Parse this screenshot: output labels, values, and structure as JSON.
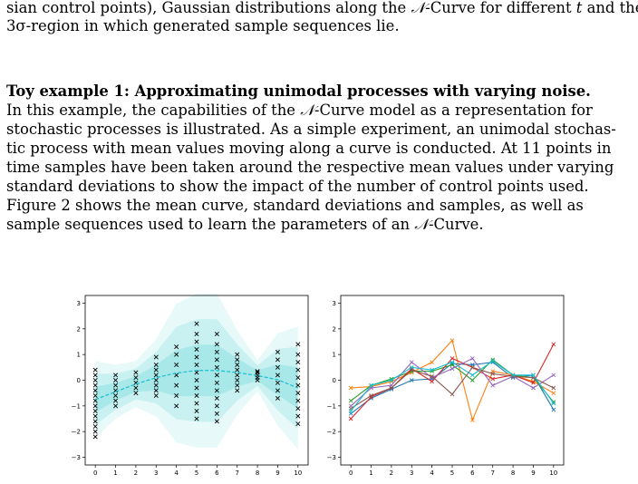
{
  "text": {
    "top_line1_a": "sian control points), Gaussian distributions along the ",
    "top_line1_b": "-Curve for different ",
    "top_line1_c": " and the",
    "top_line2": "3σ-region in which generated sample sequences lie.",
    "para_heading": "Toy example 1: Approximating unimodal processes with varying noise.",
    "para_line2_a": "In this example, the capabilities of the ",
    "para_line2_b": "-Curve model as a representation for",
    "para_line3": "stochastic processes is illustrated. As a simple experiment, an unimodal stochas-",
    "para_line4": "tic process with mean values moving along a curve is conducted. At 11 points in",
    "para_line5": "time samples have been taken around the respective mean values under varying",
    "para_line6": "standard deviations to show the impact of the number of control points used.",
    "para_line7": "Figure 2 shows the mean curve, standard deviations and samples, as well as",
    "para_line8_a": "sample sequences used to learn the parameters of an ",
    "para_line8_b": "-Curve.",
    "sym_N": "𝒩",
    "sym_t": "t"
  },
  "chart_data": [
    {
      "type": "scatter",
      "x_ticks": [
        "0",
        "1",
        "2",
        "3",
        "4",
        "5",
        "6",
        "7",
        "8",
        "9",
        "10"
      ],
      "y_ticks": [
        "-3",
        "-2",
        "-1",
        "0",
        "1",
        "2",
        "3"
      ],
      "xlim": [
        -0.5,
        10.5
      ],
      "ylim": [
        -3.3,
        3.3
      ],
      "mean_curve": {
        "x": [
          0,
          1,
          2,
          3,
          4,
          5,
          6,
          7,
          8,
          9,
          10
        ],
        "y": [
          -0.75,
          -0.45,
          -0.15,
          0.1,
          0.28,
          0.38,
          0.38,
          0.3,
          0.18,
          0.02,
          -0.3
        ]
      },
      "std": [
        0.5,
        0.35,
        0.3,
        0.5,
        0.9,
        1.0,
        1.0,
        0.55,
        0.2,
        0.6,
        0.8
      ],
      "samples": [
        {
          "x": 0,
          "y": [
            -2.2,
            -2.0,
            -1.8,
            -1.6,
            -1.4,
            -1.2,
            -1.0,
            -0.8,
            -0.6,
            -0.4,
            -0.2,
            0.0,
            0.2,
            0.4
          ]
        },
        {
          "x": 1,
          "y": [
            -1.0,
            -0.8,
            -0.6,
            -0.4,
            -0.2,
            0.0,
            0.2
          ]
        },
        {
          "x": 2,
          "y": [
            -0.5,
            -0.3,
            -0.1,
            0.1,
            0.3
          ]
        },
        {
          "x": 3,
          "y": [
            -0.6,
            -0.4,
            -0.2,
            0.0,
            0.2,
            0.4,
            0.6,
            0.9
          ]
        },
        {
          "x": 4,
          "y": [
            -1.0,
            -0.6,
            -0.2,
            0.2,
            0.6,
            1.0,
            1.3
          ]
        },
        {
          "x": 5,
          "y": [
            -1.5,
            -1.2,
            -0.9,
            -0.6,
            -0.3,
            0.0,
            0.3,
            0.6,
            0.9,
            1.2,
            1.5,
            1.8,
            2.2
          ]
        },
        {
          "x": 6,
          "y": [
            -1.6,
            -1.3,
            -1.0,
            -0.7,
            -0.4,
            -0.1,
            0.2,
            0.5,
            0.8,
            1.1,
            1.4,
            1.8
          ]
        },
        {
          "x": 7,
          "y": [
            -0.4,
            -0.2,
            0.0,
            0.2,
            0.4,
            0.6,
            0.8,
            1.0
          ]
        },
        {
          "x": 8,
          "y": [
            0.0,
            0.1,
            0.2,
            0.3,
            0.35
          ]
        },
        {
          "x": 9,
          "y": [
            -0.7,
            -0.4,
            -0.1,
            0.2,
            0.5,
            0.8,
            1.1
          ]
        },
        {
          "x": 10,
          "y": [
            -1.7,
            -1.4,
            -1.1,
            -0.8,
            -0.5,
            -0.2,
            0.1,
            0.4,
            0.7,
            1.0,
            1.4
          ]
        }
      ],
      "colors": {
        "mean": "#17becf",
        "band": "#7fdede",
        "samples": "#000000"
      }
    },
    {
      "type": "line",
      "x_ticks": [
        "0",
        "1",
        "2",
        "3",
        "4",
        "5",
        "6",
        "7",
        "8",
        "9",
        "10"
      ],
      "y_ticks": [
        "-3",
        "-2",
        "-1",
        "0",
        "1",
        "2",
        "3"
      ],
      "xlim": [
        -0.5,
        10.5
      ],
      "ylim": [
        -3.3,
        3.3
      ],
      "x": [
        0,
        1,
        2,
        3,
        4,
        5,
        6,
        7,
        8,
        9,
        10
      ],
      "series": [
        {
          "color": "#1f77b4",
          "values": [
            -1.3,
            -0.7,
            -0.35,
            0.0,
            0.05,
            0.65,
            0.6,
            0.7,
            0.1,
            0.2,
            -1.15
          ]
        },
        {
          "color": "#ff7f0e",
          "values": [
            -0.3,
            -0.25,
            -0.05,
            0.3,
            0.7,
            1.55,
            -1.55,
            0.35,
            0.2,
            -0.05,
            -0.5
          ]
        },
        {
          "color": "#2ca02c",
          "values": [
            -0.8,
            -0.2,
            0.05,
            0.35,
            0.35,
            0.6,
            0.0,
            0.8,
            0.2,
            0.1,
            -0.85
          ]
        },
        {
          "color": "#d62728",
          "values": [
            -1.5,
            -0.65,
            -0.3,
            0.45,
            -0.05,
            0.85,
            0.5,
            0.05,
            0.2,
            -0.1,
            1.4
          ]
        },
        {
          "color": "#9467bd",
          "values": [
            -1.0,
            -0.3,
            -0.2,
            0.7,
            0.1,
            0.45,
            0.85,
            -0.2,
            0.15,
            -0.3,
            0.2
          ]
        },
        {
          "color": "#8c564b",
          "values": [
            -1.1,
            -0.6,
            -0.3,
            0.4,
            0.15,
            -0.55,
            0.5,
            0.25,
            0.15,
            0.1,
            -0.3
          ]
        },
        {
          "color": "#17becf",
          "values": [
            -1.2,
            -0.2,
            0.0,
            0.5,
            0.4,
            0.7,
            0.2,
            0.75,
            0.2,
            0.2,
            -0.9
          ]
        }
      ]
    }
  ]
}
